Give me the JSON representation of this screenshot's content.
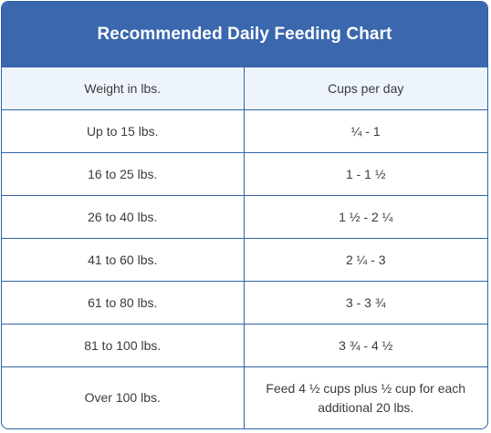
{
  "title": "Recommended Daily Feeding Chart",
  "headers": [
    "Weight in lbs.",
    "Cups per day"
  ],
  "rows": [
    {
      "weight": "Up to 15 lbs.",
      "cups": "¼ - 1"
    },
    {
      "weight": "16 to 25 lbs.",
      "cups": "1 - 1 ½"
    },
    {
      "weight": "26 to 40 lbs.",
      "cups": "1 ½ - 2 ¼"
    },
    {
      "weight": "41 to 60 lbs.",
      "cups": "2 ¼ - 3"
    },
    {
      "weight": "61 to 80 lbs.",
      "cups": "3 - 3 ¾"
    },
    {
      "weight": "81 to 100 lbs.",
      "cups": "3 ¾ - 4 ½"
    },
    {
      "weight": "Over 100 lbs.",
      "cups": "Feed 4 ½ cups plus ½ cup for each additional 20 lbs."
    }
  ],
  "colors": {
    "header_bar": "#3a67ad",
    "border": "#2f63a8",
    "column_header_bg": "#eef4fc",
    "text": "#3b3b3b"
  }
}
